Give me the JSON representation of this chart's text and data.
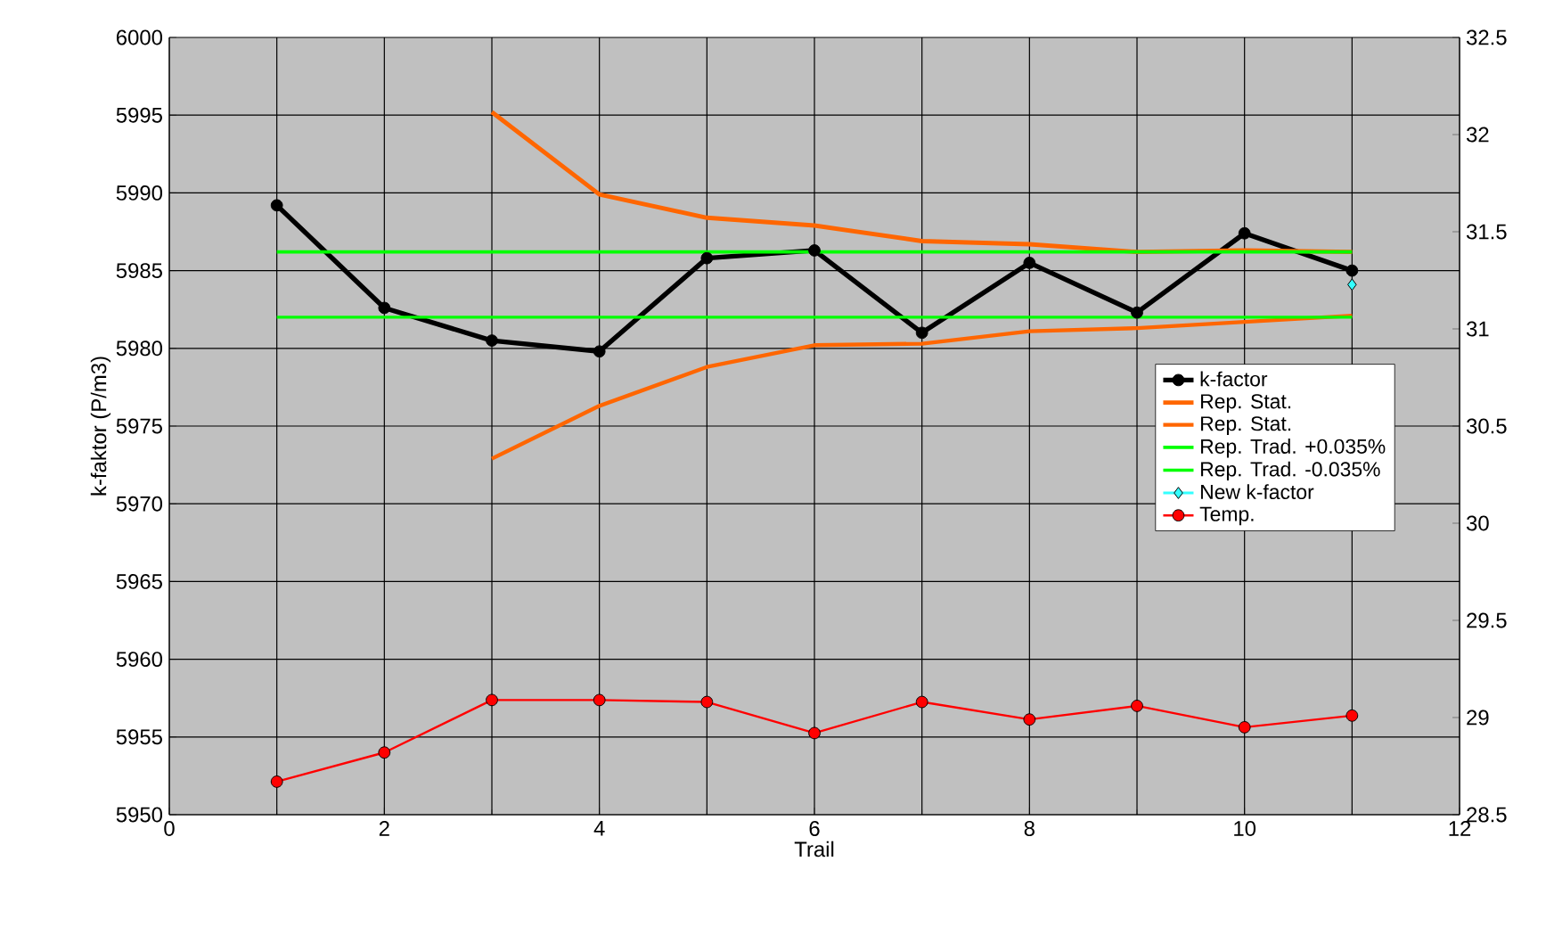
{
  "chart_data": {
    "type": "line",
    "xlabel": "Trail",
    "ylabel": "k-faktor (P/m3)",
    "xlim": [
      0,
      12
    ],
    "xticks": [
      0,
      2,
      4,
      6,
      8,
      10,
      12
    ],
    "ylim": [
      5950,
      6000
    ],
    "yticks": [
      5950,
      5955,
      5960,
      5965,
      5970,
      5975,
      5980,
      5985,
      5990,
      5995,
      6000
    ],
    "y2lim": [
      28.5,
      32.5
    ],
    "y2ticks": [
      28.5,
      29,
      29.5,
      30,
      30.5,
      31,
      31.5,
      32,
      32.5
    ],
    "grid": true,
    "legend": "right",
    "series": [
      {
        "name": "k-factor",
        "color": "#000000",
        "marker": "circle",
        "x": [
          1,
          2,
          3,
          4,
          5,
          6,
          7,
          8,
          9,
          10,
          11
        ],
        "values": [
          5989.2,
          5982.6,
          5980.5,
          5979.8,
          5985.8,
          5986.3,
          5981.0,
          5985.5,
          5982.3,
          5987.4,
          5985.0
        ]
      },
      {
        "name": "Rep. Stat.",
        "color": "#ff6600",
        "marker": "none",
        "x": [
          3,
          4,
          5,
          6,
          7,
          8,
          9,
          10,
          11
        ],
        "values": [
          5995.2,
          5989.9,
          5988.4,
          5987.9,
          5986.9,
          5986.7,
          5986.2,
          5986.3,
          5986.2
        ]
      },
      {
        "name": "Rep. Stat.",
        "color": "#ff6600",
        "marker": "none",
        "x": [
          3,
          4,
          5,
          6,
          7,
          8,
          9,
          10,
          11
        ],
        "values": [
          5972.9,
          5976.3,
          5978.8,
          5980.2,
          5980.3,
          5981.1,
          5981.3,
          5981.7,
          5982.1
        ]
      },
      {
        "name": "Rep. Trad. +0.035%",
        "color": "#00ff00",
        "marker": "none",
        "x": [
          1,
          11
        ],
        "values": [
          5986.2,
          5986.2
        ]
      },
      {
        "name": "Rep. Trad. -0.035%",
        "color": "#00ff00",
        "marker": "none",
        "x": [
          1,
          11
        ],
        "values": [
          5982.0,
          5982.0
        ]
      },
      {
        "name": "New k-factor",
        "color": "#33ffff",
        "marker": "diamond",
        "x": [
          11
        ],
        "values": [
          5984.1
        ]
      },
      {
        "name": "Temp.",
        "color": "#ff0000",
        "marker": "circle",
        "axis": "y2",
        "x": [
          1,
          2,
          3,
          4,
          5,
          6,
          7,
          8,
          9,
          10,
          11
        ],
        "values": [
          28.67,
          28.82,
          29.09,
          29.09,
          29.08,
          28.92,
          29.08,
          28.99,
          29.06,
          28.95,
          29.01
        ]
      }
    ]
  }
}
